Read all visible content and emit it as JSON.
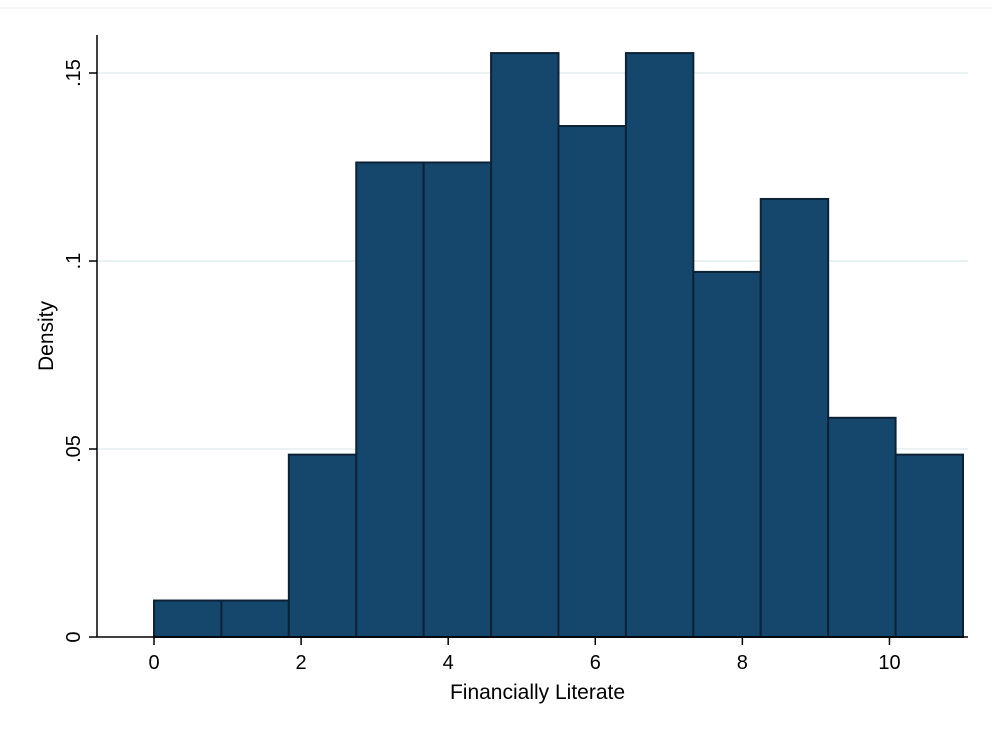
{
  "chart_data": {
    "type": "bar",
    "subtype": "histogram",
    "title": "",
    "xlabel": "Financially Literate",
    "ylabel": "Density",
    "xlim": [
      -0.5,
      11
    ],
    "ylim": [
      0,
      0.16
    ],
    "grid": true,
    "bins": [
      {
        "x0": 0.0,
        "x1": 0.9166667,
        "density": 0.0097
      },
      {
        "x0": 0.9166667,
        "x1": 1.8333333,
        "density": 0.0097
      },
      {
        "x0": 1.8333333,
        "x1": 2.75,
        "density": 0.0485
      },
      {
        "x0": 2.75,
        "x1": 3.6666667,
        "density": 0.1262
      },
      {
        "x0": 3.6666667,
        "x1": 4.5833333,
        "density": 0.1262
      },
      {
        "x0": 4.5833333,
        "x1": 5.5,
        "density": 0.1553
      },
      {
        "x0": 5.5,
        "x1": 6.4166667,
        "density": 0.1359
      },
      {
        "x0": 6.4166667,
        "x1": 7.3333333,
        "density": 0.1553
      },
      {
        "x0": 7.3333333,
        "x1": 8.25,
        "density": 0.0971
      },
      {
        "x0": 8.25,
        "x1": 9.1666667,
        "density": 0.1165
      },
      {
        "x0": 9.1666667,
        "x1": 10.0833333,
        "density": 0.0583
      },
      {
        "x0": 10.0833333,
        "x1": 11.0,
        "density": 0.0485
      }
    ],
    "xticks": [
      {
        "value": 0,
        "label": "0"
      },
      {
        "value": 2,
        "label": "2"
      },
      {
        "value": 4,
        "label": "4"
      },
      {
        "value": 6,
        "label": "6"
      },
      {
        "value": 8,
        "label": "8"
      },
      {
        "value": 10,
        "label": "10"
      }
    ],
    "yticks": [
      {
        "value": 0,
        "label": "0"
      },
      {
        "value": 0.05,
        "label": ".05"
      },
      {
        "value": 0.1,
        "label": ".1"
      },
      {
        "value": 0.15,
        "label": ".15"
      }
    ],
    "colors": {
      "bar_fill": "#15466c",
      "bar_edge": "#0c2236",
      "grid": "#e3eef0",
      "axis": "#000000",
      "background": "#ffffff"
    }
  }
}
